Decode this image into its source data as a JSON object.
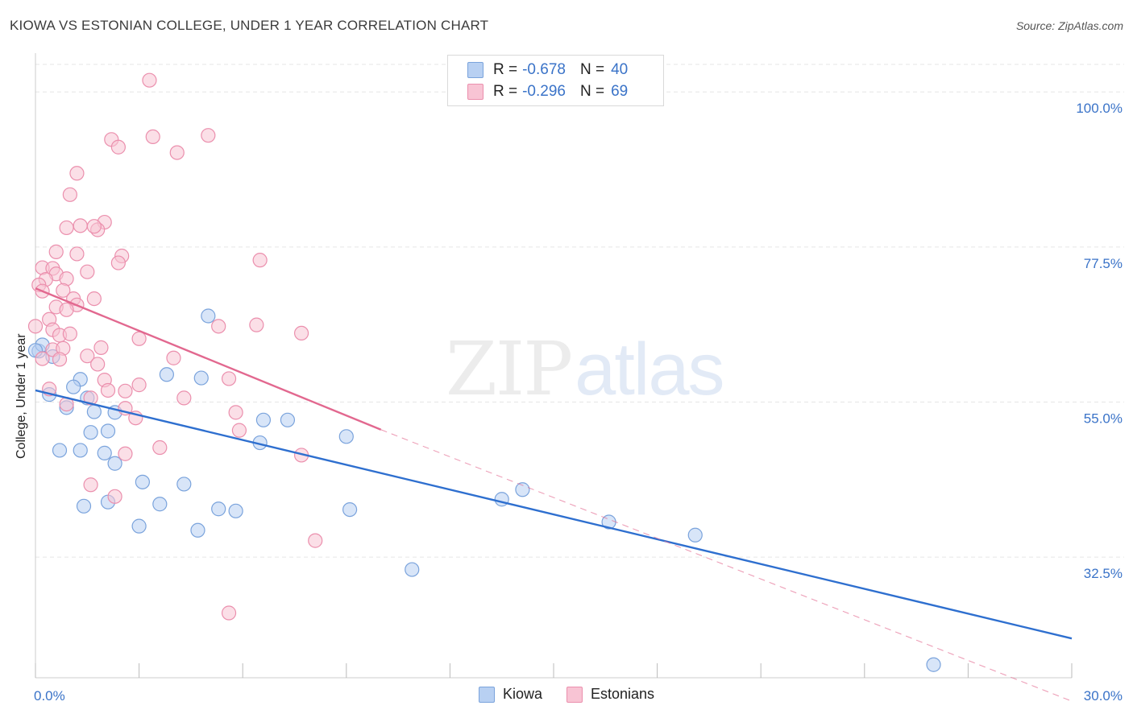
{
  "header": {
    "title": "KIOWA VS ESTONIAN COLLEGE, UNDER 1 YEAR CORRELATION CHART",
    "source": "Source: ZipAtlas.com"
  },
  "watermark": {
    "zip": "ZIP",
    "atlas": "atlas"
  },
  "legend": {
    "rows": [
      {
        "r_label": "R =",
        "r_value": "-0.678",
        "n_label": "N =",
        "n_value": "40",
        "color": "#a9c8f0"
      },
      {
        "r_label": "R =",
        "r_value": "-0.296",
        "n_label": "N =",
        "n_value": "69",
        "color": "#f7b8cc"
      }
    ]
  },
  "colors": {
    "kiowa_fill": "#b8d0f2",
    "kiowa_stroke": "#7aa3dc",
    "kiowa_line": "#2e6fcf",
    "estonian_fill": "#f8c4d4",
    "estonian_stroke": "#eb8fad",
    "estonian_line": "#e2688f",
    "axis_text": "#3a73c8",
    "grid": "#e6e6e6"
  },
  "chart_data": {
    "type": "scatter",
    "title": "KIOWA VS ESTONIAN COLLEGE, UNDER 1 YEAR CORRELATION CHART",
    "xlabel": "",
    "ylabel": "College, Under 1 year",
    "xlim": [
      0,
      30
    ],
    "ylim": [
      15,
      104
    ],
    "x_tick_labels": [
      "0.0%",
      "30.0%"
    ],
    "y_ticks": [
      32.5,
      55.0,
      77.5,
      100.0
    ],
    "y_tick_labels": [
      "32.5%",
      "55.0%",
      "77.5%",
      "100.0%"
    ],
    "grid": true,
    "series": [
      {
        "name": "Kiowa",
        "r": -0.678,
        "n": 40,
        "trend": {
          "x": [
            0,
            30
          ],
          "y": [
            56.7,
            20.7
          ]
        },
        "points": [
          [
            0.1,
            62.4
          ],
          [
            0.2,
            63.3
          ],
          [
            0.5,
            61.6
          ],
          [
            0.4,
            56.1
          ],
          [
            1.3,
            58.3
          ],
          [
            1.1,
            57.2
          ],
          [
            0.9,
            54.2
          ],
          [
            1.5,
            55.6
          ],
          [
            1.7,
            53.6
          ],
          [
            1.6,
            50.6
          ],
          [
            2.3,
            53.5
          ],
          [
            2.1,
            50.8
          ],
          [
            0.7,
            48.0
          ],
          [
            1.3,
            48.0
          ],
          [
            2.0,
            47.6
          ],
          [
            2.3,
            46.1
          ],
          [
            1.4,
            39.9
          ],
          [
            2.1,
            40.5
          ],
          [
            3.1,
            43.4
          ],
          [
            3.6,
            40.2
          ],
          [
            4.3,
            43.1
          ],
          [
            3.0,
            37.0
          ],
          [
            4.7,
            36.4
          ],
          [
            4.8,
            58.5
          ],
          [
            5.0,
            67.5
          ],
          [
            3.8,
            59.0
          ],
          [
            5.3,
            39.5
          ],
          [
            5.8,
            39.2
          ],
          [
            6.5,
            49.1
          ],
          [
            6.6,
            52.4
          ],
          [
            7.3,
            52.4
          ],
          [
            9.0,
            50.0
          ],
          [
            9.1,
            39.4
          ],
          [
            10.9,
            30.7
          ],
          [
            13.5,
            40.9
          ],
          [
            14.1,
            42.3
          ],
          [
            16.6,
            37.6
          ],
          [
            19.1,
            35.7
          ],
          [
            26.0,
            16.9
          ],
          [
            0.0,
            62.5
          ]
        ]
      },
      {
        "name": "Estonians",
        "r": -0.296,
        "n": 69,
        "trend": {
          "x": [
            0,
            10
          ],
          "y": [
            71.5,
            51.0
          ]
        },
        "trend_extension": {
          "x": [
            10,
            30
          ],
          "y": [
            51.0,
            11.6
          ]
        },
        "points": [
          [
            3.3,
            101.7
          ],
          [
            5.0,
            93.7
          ],
          [
            3.4,
            93.5
          ],
          [
            2.2,
            93.1
          ],
          [
            2.4,
            92.0
          ],
          [
            4.1,
            91.2
          ],
          [
            1.2,
            88.2
          ],
          [
            1.0,
            85.1
          ],
          [
            2.0,
            81.1
          ],
          [
            1.3,
            80.6
          ],
          [
            0.9,
            80.3
          ],
          [
            1.8,
            80.0
          ],
          [
            1.7,
            80.5
          ],
          [
            0.6,
            76.8
          ],
          [
            1.2,
            76.5
          ],
          [
            2.5,
            76.2
          ],
          [
            6.5,
            75.6
          ],
          [
            2.4,
            75.2
          ],
          [
            0.2,
            74.5
          ],
          [
            0.5,
            74.4
          ],
          [
            0.6,
            73.6
          ],
          [
            1.5,
            73.9
          ],
          [
            0.3,
            72.8
          ],
          [
            0.1,
            72.0
          ],
          [
            0.9,
            72.9
          ],
          [
            0.2,
            71.1
          ],
          [
            0.8,
            71.2
          ],
          [
            1.1,
            70.0
          ],
          [
            1.7,
            70.0
          ],
          [
            1.2,
            69.1
          ],
          [
            0.6,
            68.8
          ],
          [
            0.9,
            68.4
          ],
          [
            0.4,
            67.0
          ],
          [
            0.5,
            65.5
          ],
          [
            5.3,
            66.0
          ],
          [
            0.7,
            64.7
          ],
          [
            1.0,
            64.9
          ],
          [
            7.7,
            65.0
          ],
          [
            3.0,
            64.2
          ],
          [
            0.5,
            62.6
          ],
          [
            0.8,
            62.8
          ],
          [
            1.9,
            62.9
          ],
          [
            0.2,
            61.3
          ],
          [
            0.7,
            61.2
          ],
          [
            1.5,
            61.7
          ],
          [
            4.0,
            61.4
          ],
          [
            1.8,
            60.5
          ],
          [
            2.0,
            58.2
          ],
          [
            5.6,
            58.4
          ],
          [
            3.0,
            57.5
          ],
          [
            2.6,
            56.6
          ],
          [
            0.4,
            56.9
          ],
          [
            1.6,
            55.6
          ],
          [
            2.1,
            56.7
          ],
          [
            4.3,
            55.6
          ],
          [
            2.6,
            54.1
          ],
          [
            0.9,
            54.7
          ],
          [
            5.8,
            53.5
          ],
          [
            2.9,
            52.7
          ],
          [
            5.9,
            50.9
          ],
          [
            3.6,
            48.4
          ],
          [
            2.6,
            47.5
          ],
          [
            7.7,
            47.3
          ],
          [
            1.6,
            43.0
          ],
          [
            2.3,
            41.3
          ],
          [
            8.1,
            34.9
          ],
          [
            5.6,
            24.4
          ],
          [
            0.0,
            66.0
          ],
          [
            6.4,
            66.2
          ]
        ]
      }
    ]
  }
}
